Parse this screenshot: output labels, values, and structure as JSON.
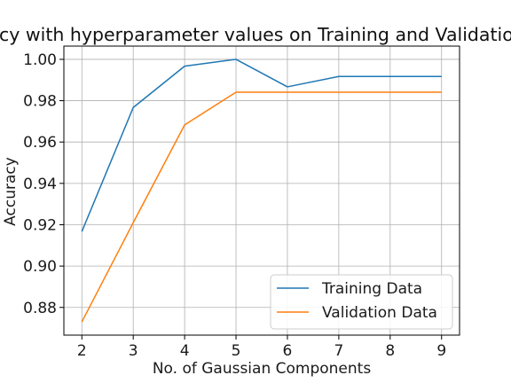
{
  "chart_data": {
    "type": "line",
    "title": "Accuracy with hyperparameter values on Training and Validation Data",
    "xlabel": "No. of Gaussian Components",
    "ylabel": "Accuracy",
    "x": [
      2,
      3,
      4,
      5,
      6,
      7,
      8,
      9
    ],
    "series": [
      {
        "name": "Training Data",
        "color": "#1f77b4",
        "values": [
          0.9167,
          0.9767,
          0.9967,
          1.0,
          0.9867,
          0.9917,
          0.9917,
          0.9917
        ]
      },
      {
        "name": "Validation Data",
        "color": "#ff7f0e",
        "values": [
          0.873,
          0.921,
          0.9683,
          0.9841,
          0.9841,
          0.9841,
          0.9841,
          0.9841
        ]
      }
    ],
    "xlim": [
      1.65,
      9.35
    ],
    "ylim": [
      0.8666,
      1.0064
    ],
    "xticks": [
      "2",
      "3",
      "4",
      "5",
      "6",
      "7",
      "8",
      "9"
    ],
    "yticks": [
      "0.88",
      "0.90",
      "0.92",
      "0.94",
      "0.96",
      "0.98",
      "1.00"
    ],
    "grid": true,
    "legend_position": "lower-right"
  }
}
